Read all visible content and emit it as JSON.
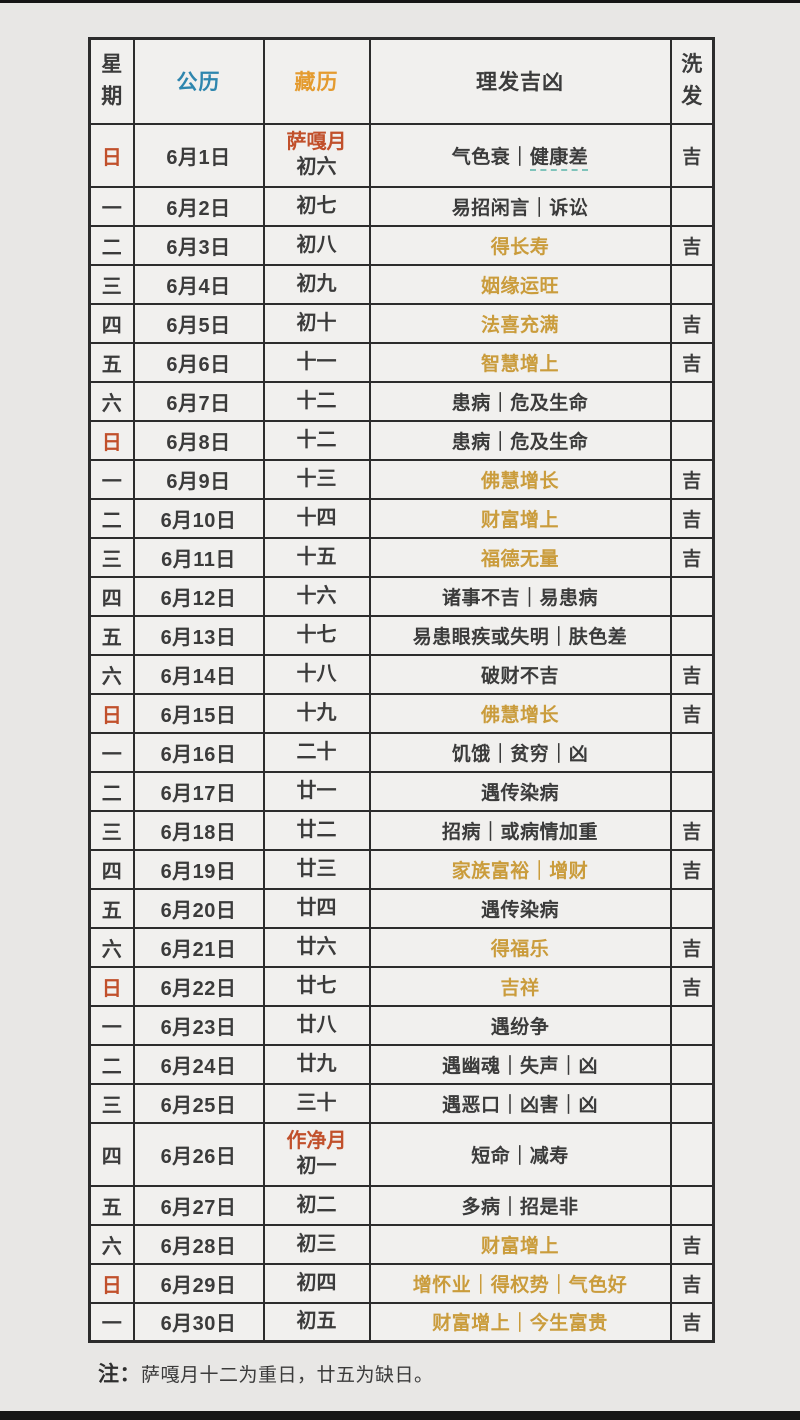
{
  "colors": {
    "page_bg": "#e8e7e5",
    "cell_bg": "#f1f0ee",
    "border": "#2c2c2c",
    "gregorian_header_blue": "#2e86ae",
    "tibetan_header_gold": "#e49b2f",
    "sunday_red": "#c1502b",
    "month_label_red": "#c1502b",
    "auspicious_gold": "#ca9c3c",
    "text_dark": "#3b3b3b",
    "dashed_underline_teal": "#7fc3ba"
  },
  "header": {
    "week": "星期",
    "gregorian": "公历",
    "tibetan": "藏历",
    "fortune": "理发吉凶",
    "wash": "洗发"
  },
  "note": {
    "label": "注：",
    "text": "萨嘎月十二为重日，廿五为缺日。"
  },
  "rows": [
    {
      "week": "日",
      "week_red": true,
      "date": "6月1日",
      "month": "萨嘎月",
      "tibetan": "初六",
      "fortune": "气色衰｜健康差",
      "gold": false,
      "underline": "健康差",
      "wash": "吉"
    },
    {
      "week": "一",
      "week_red": false,
      "date": "6月2日",
      "tibetan": "初七",
      "fortune": "易招闲言｜诉讼",
      "gold": false,
      "wash": ""
    },
    {
      "week": "二",
      "week_red": false,
      "date": "6月3日",
      "tibetan": "初八",
      "fortune": "得长寿",
      "gold": true,
      "wash": "吉"
    },
    {
      "week": "三",
      "week_red": false,
      "date": "6月4日",
      "tibetan": "初九",
      "fortune": "姻缘运旺",
      "gold": true,
      "wash": ""
    },
    {
      "week": "四",
      "week_red": false,
      "date": "6月5日",
      "tibetan": "初十",
      "fortune": "法喜充满",
      "gold": true,
      "wash": "吉"
    },
    {
      "week": "五",
      "week_red": false,
      "date": "6月6日",
      "tibetan": "十一",
      "fortune": "智慧增上",
      "gold": true,
      "wash": "吉"
    },
    {
      "week": "六",
      "week_red": false,
      "date": "6月7日",
      "tibetan": "十二",
      "fortune": "患病｜危及生命",
      "gold": false,
      "wash": ""
    },
    {
      "week": "日",
      "week_red": true,
      "date": "6月8日",
      "tibetan": "十二",
      "fortune": "患病｜危及生命",
      "gold": false,
      "wash": ""
    },
    {
      "week": "一",
      "week_red": false,
      "date": "6月9日",
      "tibetan": "十三",
      "fortune": "佛慧增长",
      "gold": true,
      "wash": "吉"
    },
    {
      "week": "二",
      "week_red": false,
      "date": "6月10日",
      "tibetan": "十四",
      "fortune": "财富增上",
      "gold": true,
      "wash": "吉"
    },
    {
      "week": "三",
      "week_red": false,
      "date": "6月11日",
      "tibetan": "十五",
      "fortune": "福德无量",
      "gold": true,
      "wash": "吉"
    },
    {
      "week": "四",
      "week_red": false,
      "date": "6月12日",
      "tibetan": "十六",
      "fortune": "诸事不吉｜易患病",
      "gold": false,
      "wash": ""
    },
    {
      "week": "五",
      "week_red": false,
      "date": "6月13日",
      "tibetan": "十七",
      "fortune": "易患眼疾或失明｜肤色差",
      "gold": false,
      "wash": ""
    },
    {
      "week": "六",
      "week_red": false,
      "date": "6月14日",
      "tibetan": "十八",
      "fortune": "破财不吉",
      "gold": false,
      "wash": "吉"
    },
    {
      "week": "日",
      "week_red": true,
      "date": "6月15日",
      "tibetan": "十九",
      "fortune": "佛慧增长",
      "gold": true,
      "wash": "吉"
    },
    {
      "week": "一",
      "week_red": false,
      "date": "6月16日",
      "tibetan": "二十",
      "fortune": "饥饿｜贫穷｜凶",
      "gold": false,
      "wash": ""
    },
    {
      "week": "二",
      "week_red": false,
      "date": "6月17日",
      "tibetan": "廿一",
      "fortune": "遇传染病",
      "gold": false,
      "wash": ""
    },
    {
      "week": "三",
      "week_red": false,
      "date": "6月18日",
      "tibetan": "廿二",
      "fortune": "招病｜或病情加重",
      "gold": false,
      "wash": "吉"
    },
    {
      "week": "四",
      "week_red": false,
      "date": "6月19日",
      "tibetan": "廿三",
      "fortune": "家族富裕｜增财",
      "gold": true,
      "wash": "吉"
    },
    {
      "week": "五",
      "week_red": false,
      "date": "6月20日",
      "tibetan": "廿四",
      "fortune": "遇传染病",
      "gold": false,
      "wash": ""
    },
    {
      "week": "六",
      "week_red": false,
      "date": "6月21日",
      "tibetan": "廿六",
      "fortune": "得福乐",
      "gold": true,
      "wash": "吉"
    },
    {
      "week": "日",
      "week_red": true,
      "date": "6月22日",
      "tibetan": "廿七",
      "fortune": "吉祥",
      "gold": true,
      "wash": "吉"
    },
    {
      "week": "一",
      "week_red": false,
      "date": "6月23日",
      "tibetan": "廿八",
      "fortune": "遇纷争",
      "gold": false,
      "wash": ""
    },
    {
      "week": "二",
      "week_red": false,
      "date": "6月24日",
      "tibetan": "廿九",
      "fortune": "遇幽魂｜失声｜凶",
      "gold": false,
      "wash": ""
    },
    {
      "week": "三",
      "week_red": false,
      "date": "6月25日",
      "tibetan": "三十",
      "fortune": "遇恶口｜凶害｜凶",
      "gold": false,
      "wash": ""
    },
    {
      "week": "四",
      "week_red": false,
      "date": "6月26日",
      "month": "作净月",
      "tibetan": "初一",
      "fortune": "短命｜减寿",
      "gold": false,
      "wash": ""
    },
    {
      "week": "五",
      "week_red": false,
      "date": "6月27日",
      "tibetan": "初二",
      "fortune": "多病｜招是非",
      "gold": false,
      "wash": ""
    },
    {
      "week": "六",
      "week_red": false,
      "date": "6月28日",
      "tibetan": "初三",
      "fortune": "财富增上",
      "gold": true,
      "wash": "吉"
    },
    {
      "week": "日",
      "week_red": true,
      "date": "6月29日",
      "tibetan": "初四",
      "fortune": "增怀业｜得权势｜气色好",
      "gold": true,
      "wash": "吉"
    },
    {
      "week": "一",
      "week_red": false,
      "date": "6月30日",
      "tibetan": "初五",
      "fortune": "财富增上｜今生富贵",
      "gold": true,
      "wash": "吉"
    }
  ]
}
